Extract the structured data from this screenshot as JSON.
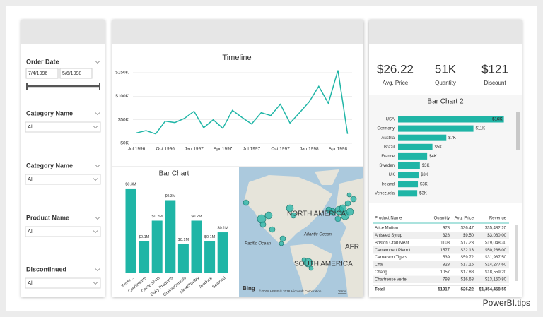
{
  "slicers": [
    {
      "title": "Order Date",
      "start": "7/4/1996",
      "end": "5/6/1998"
    },
    {
      "title": "Category Name",
      "value": "All"
    },
    {
      "title": "Category Name",
      "value": "All"
    },
    {
      "title": "Product Name",
      "value": "All"
    },
    {
      "title": "Discontinued",
      "value": "All"
    }
  ],
  "chart_data": [
    {
      "type": "line",
      "title": "Timeline",
      "categories": [
        "Jul 1996",
        null,
        null,
        "Oct 1996",
        null,
        null,
        "Jan 1997",
        null,
        null,
        "Apr 1997",
        null,
        null,
        "Jul 1997",
        null,
        null,
        "Oct 1997",
        null,
        null,
        "Jan 1998",
        null,
        null,
        "Apr 1998",
        null
      ],
      "values": [
        22000,
        27000,
        20000,
        47000,
        44000,
        53000,
        68000,
        33000,
        50000,
        32000,
        70000,
        55000,
        41000,
        65000,
        59000,
        83000,
        43000,
        65000,
        88000,
        121000,
        85000,
        155000,
        20000
      ],
      "color": "#1fb5a6",
      "ylim": [
        0,
        160000
      ],
      "yticks": [
        {
          "value": 0,
          "label": "$0K"
        },
        {
          "value": 50000,
          "label": "$50K"
        },
        {
          "value": 100000,
          "label": "$100K"
        },
        {
          "value": 150000,
          "label": "$150K"
        }
      ],
      "grid": true
    },
    {
      "type": "bar",
      "title": "Bar Chart",
      "categories": [
        "Bever...",
        "Condiments",
        "Confections",
        "Dairy Products",
        "Grains/Cereals",
        "Meat/Poultry",
        "Produce",
        "Seafood"
      ],
      "values": [
        0.29,
        0.11,
        0.18,
        0.25,
        0.1,
        0.18,
        0.11,
        0.14
      ],
      "value_labels": [
        "$0.3M",
        "$0.1M",
        "$0.2M",
        "$0.3M",
        "$0.1M",
        "$0.2M",
        "$0.1M",
        "$0.1M"
      ],
      "color": "#1fb5a6"
    },
    {
      "type": "hbar",
      "title": "Bar Chart 2",
      "categories": [
        "USA",
        "Germany",
        "Austria",
        "Brazil",
        "France",
        "Sweden",
        "UK",
        "Ireland",
        "Venezuela"
      ],
      "values": [
        16,
        11.4,
        7.3,
        5.2,
        4.4,
        3.3,
        3.1,
        3,
        2.9
      ],
      "value_labels": [
        "$16K",
        "$11K",
        "$7K",
        "$5K",
        "$4K",
        "$3K",
        "$3K",
        "$3K",
        "$3K"
      ],
      "color": "#1fb5a6"
    }
  ],
  "map": {
    "labels": [
      "NORTH AMERICA",
      "Pacific Ocean",
      "Atlantic Ocean",
      "SOUTH AMERICA",
      "AFR"
    ],
    "logo": "Bing",
    "copyright": "© 2018 HERE © 2018 Microsoft Corporation",
    "terms": "Terms"
  },
  "kpis": [
    {
      "value": "$26.22",
      "label": "Avg. Price"
    },
    {
      "value": "51K",
      "label": "Quantity"
    },
    {
      "value": "$121",
      "label": "Discount"
    }
  ],
  "table": {
    "columns": [
      "Product Name",
      "Quantity",
      "Avg. Price",
      "Revenue"
    ],
    "rows": [
      [
        "Alice Mutton",
        "978",
        "$36.47",
        "$35,482.20"
      ],
      [
        "Aniseed Syrup",
        "328",
        "$9.50",
        "$3,080.00"
      ],
      [
        "Boston Crab Meat",
        "1103",
        "$17.23",
        "$19,048.30"
      ],
      [
        "Camembert Pierrot",
        "1577",
        "$32.13",
        "$50,286.00"
      ],
      [
        "Carnarvon Tigers",
        "539",
        "$59.72",
        "$31,987.50"
      ],
      [
        "Chai",
        "828",
        "$17.15",
        "$14,277.60"
      ],
      [
        "Chang",
        "1057",
        "$17.88",
        "$18,559.20"
      ],
      [
        "Chartreuse verte",
        "793",
        "$16.68",
        "$13,150.80"
      ]
    ],
    "total": [
      "Total",
      "51317",
      "$26.22",
      "$1,354,458.59"
    ]
  },
  "watermark": "PowerBI.tips"
}
